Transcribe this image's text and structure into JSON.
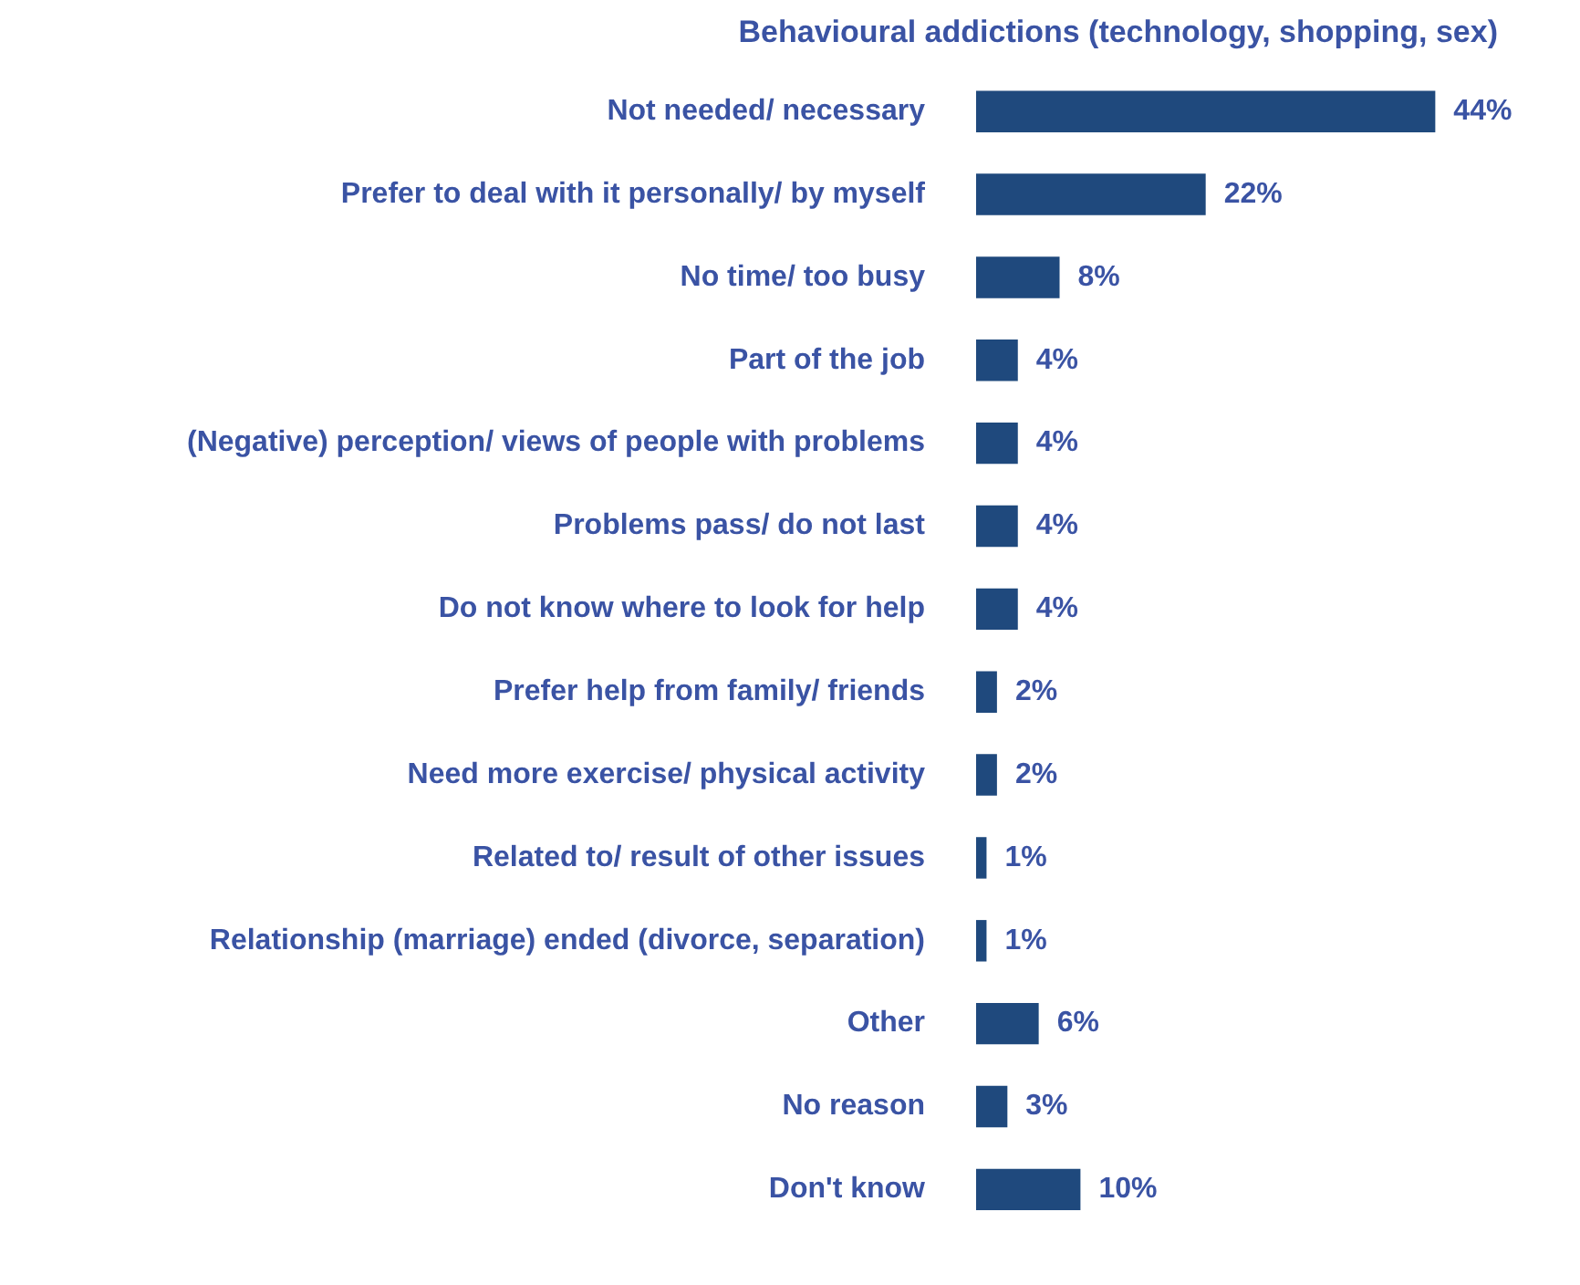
{
  "chart_data": {
    "type": "bar",
    "orientation": "horizontal",
    "title": "Behavioural addictions (technology, shopping, sex)",
    "categories": [
      "Not needed/ necessary",
      "Prefer to deal with it personally/ by myself",
      "No time/ too busy",
      "Part of the job",
      "(Negative) perception/ views of people with problems",
      "Problems pass/ do not last",
      "Do not know where to look for help",
      "Prefer help from family/ friends",
      "Need more exercise/ physical activity",
      "Related to/ result of other issues",
      "Relationship (marriage) ended (divorce, separation)",
      "Other",
      "No reason",
      "Don't know"
    ],
    "values": [
      44,
      22,
      8,
      4,
      4,
      4,
      4,
      2,
      2,
      1,
      1,
      6,
      3,
      10
    ],
    "value_labels": [
      "44%",
      "22%",
      "8%",
      "4%",
      "4%",
      "4%",
      "4%",
      "2%",
      "2%",
      "1%",
      "1%",
      "6%",
      "3%",
      "10%"
    ],
    "color": "#1f497d",
    "tick_labels": "y"
  }
}
